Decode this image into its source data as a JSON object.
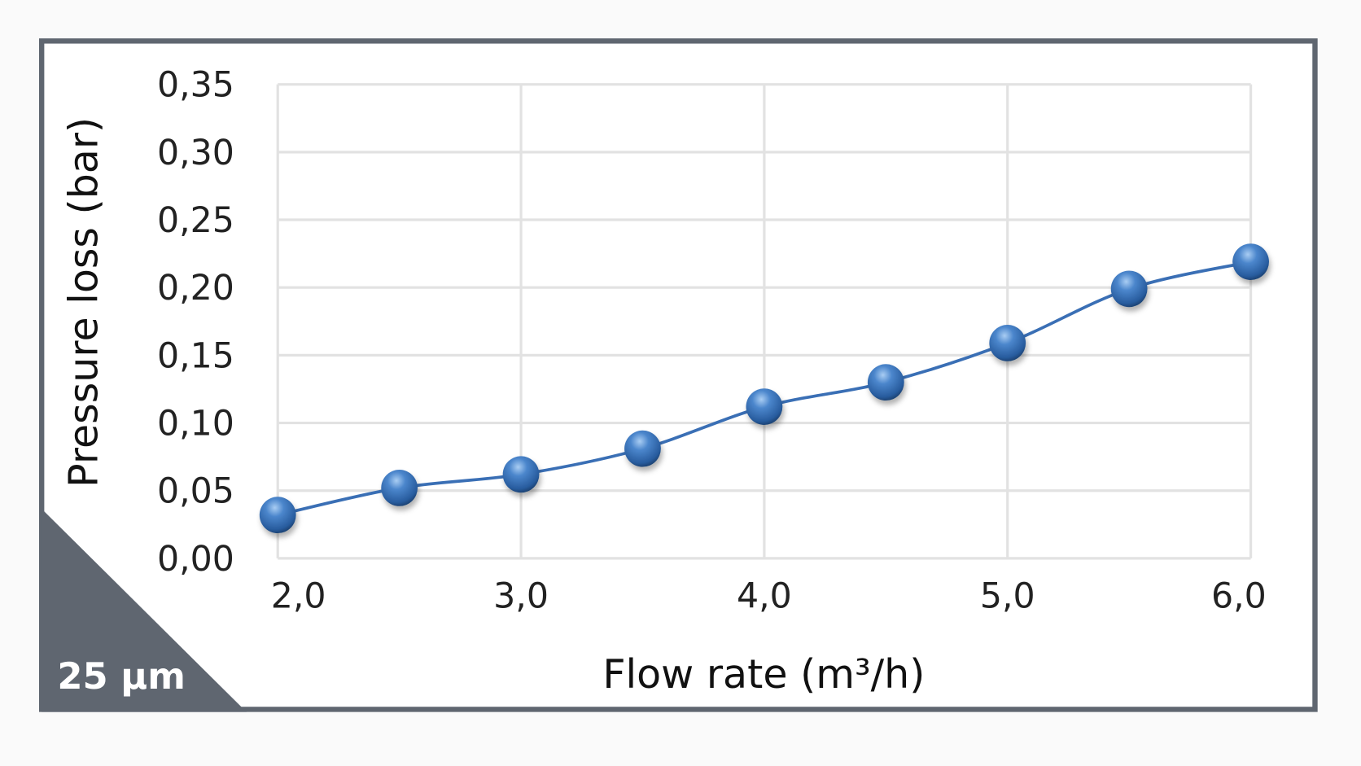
{
  "chart_data": {
    "type": "line",
    "title": "",
    "xlabel": "Flow rate (m³/h)",
    "ylabel": "Pressure loss (bar)",
    "xlim": [
      2.0,
      6.0
    ],
    "ylim": [
      0.0,
      0.35
    ],
    "grid": true,
    "x_ticks": [
      "2,0",
      "3,0",
      "4,0",
      "5,0",
      "6,0"
    ],
    "x_tick_values": [
      2,
      3,
      4,
      5,
      6
    ],
    "y_ticks": [
      "0,00",
      "0,05",
      "0,10",
      "0,15",
      "0,20",
      "0,25",
      "0,30",
      "0,35"
    ],
    "y_tick_values": [
      0,
      0.05,
      0.1,
      0.15,
      0.2,
      0.25,
      0.3,
      0.35
    ],
    "series": [
      {
        "name": "25 µm",
        "x": [
          2.0,
          2.5,
          3.0,
          3.5,
          4.0,
          4.5,
          5.0,
          5.5,
          6.0
        ],
        "values": [
          0.032,
          0.052,
          0.062,
          0.081,
          0.112,
          0.13,
          0.159,
          0.199,
          0.219
        ],
        "color": "#3a6fb5"
      }
    ],
    "badge": "25 µm",
    "frame_color": "#5f6670"
  }
}
